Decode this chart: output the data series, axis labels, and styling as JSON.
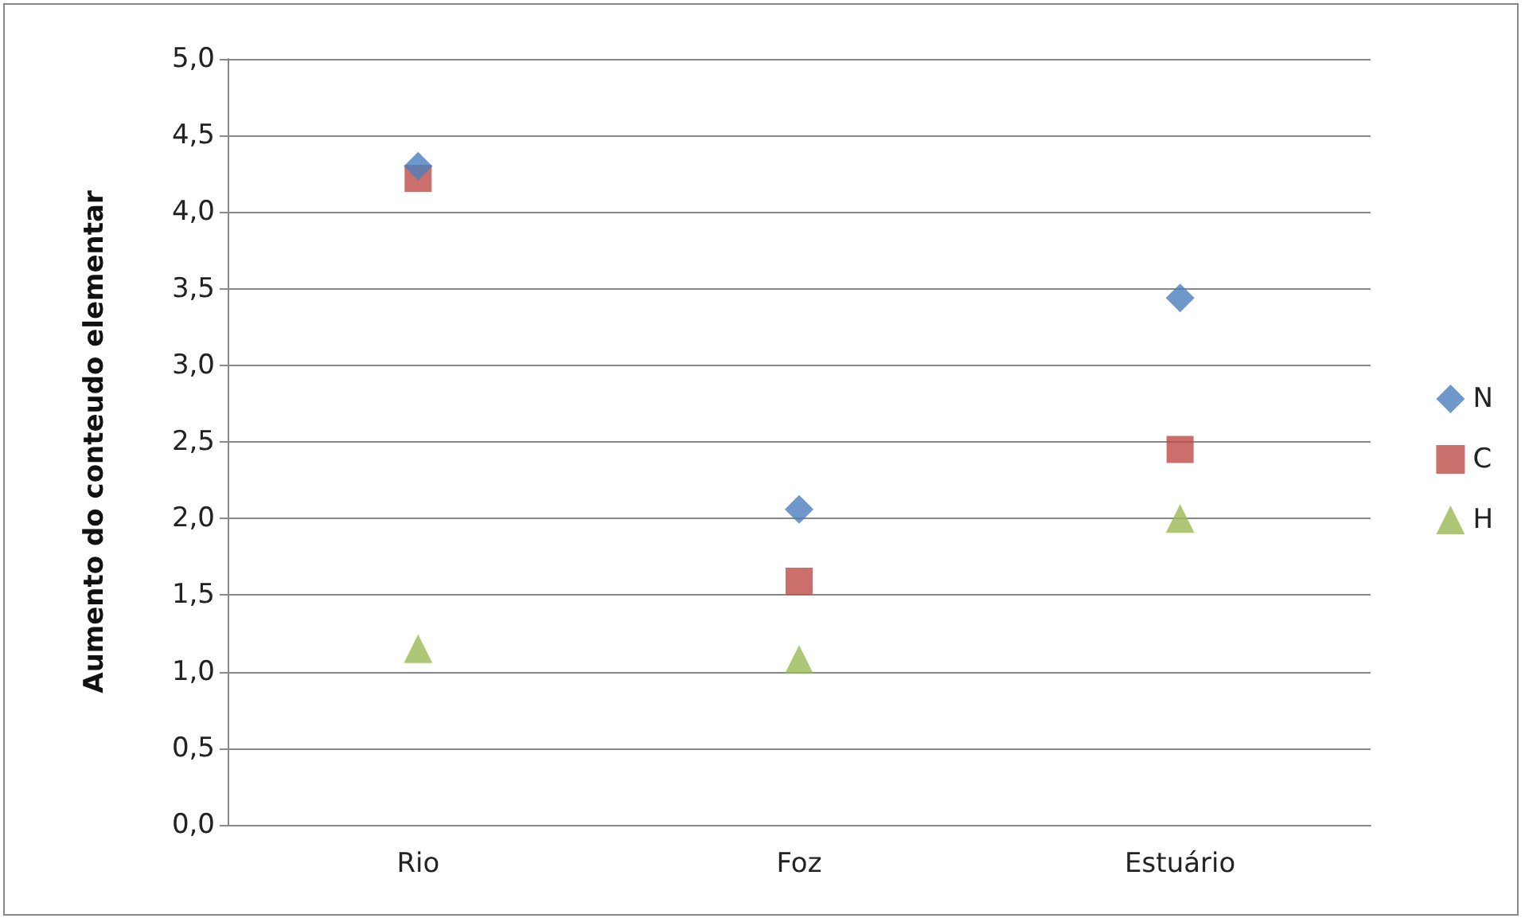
{
  "chart_data": {
    "type": "scatter",
    "ylabel": "Aumento do conteudo elementar",
    "categories": [
      "Rio",
      "Foz",
      "Estuário"
    ],
    "series": [
      {
        "name": "N",
        "color": "#4a7ebb",
        "marker": "diamond",
        "values": [
          4.3,
          2.06,
          3.44
        ]
      },
      {
        "name": "C",
        "color": "#be4b48",
        "marker": "square",
        "values": [
          4.22,
          1.59,
          2.45
        ]
      },
      {
        "name": "H",
        "color": "#98b954",
        "marker": "triangle",
        "values": [
          1.15,
          1.08,
          2.0
        ]
      }
    ],
    "ylim": [
      0,
      5
    ],
    "yticks": [
      {
        "value": 0,
        "label": "0,0"
      },
      {
        "value": 0.5,
        "label": "0,5"
      },
      {
        "value": 1,
        "label": "1,0"
      },
      {
        "value": 1.5,
        "label": "1,5"
      },
      {
        "value": 2,
        "label": "2,0"
      },
      {
        "value": 2.5,
        "label": "2,5"
      },
      {
        "value": 3,
        "label": "3,0"
      },
      {
        "value": 3.5,
        "label": "3,5"
      },
      {
        "value": 4,
        "label": "4,0"
      },
      {
        "value": 4.5,
        "label": "4,5"
      },
      {
        "value": 5,
        "label": "5,0"
      }
    ],
    "grid": "y",
    "legend": "right"
  }
}
